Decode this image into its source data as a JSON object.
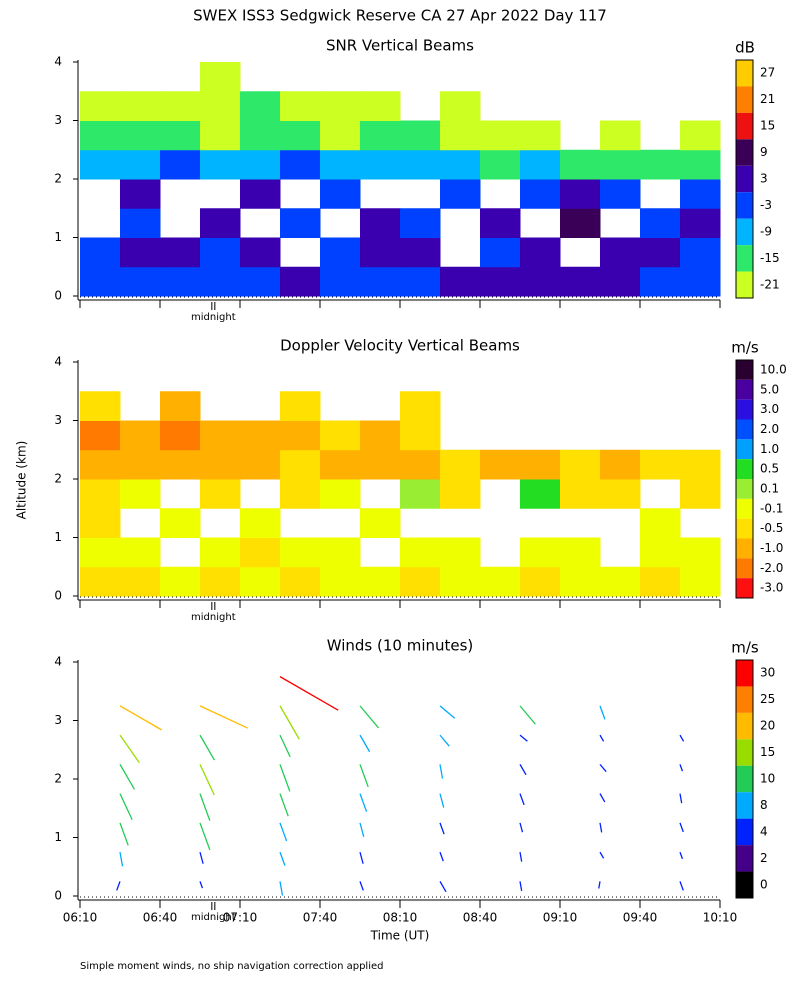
{
  "title": "SWEX ISS3 Sedgwick Reserve CA  27 Apr 2022 Day 117",
  "footnote": "Simple moment winds, no ship navigation correction applied",
  "chart_data": [
    {
      "type": "heatmap",
      "title": "SNR Vertical Beams",
      "x": [
        377.5,
        392.5,
        407.5,
        422.5,
        437.5,
        452.5,
        467.5,
        482.5,
        497.5,
        512.5,
        527.5,
        542.5,
        557.5,
        572.5,
        587.5,
        602.5
      ],
      "y": [
        0.25,
        0.75,
        1.25,
        1.75,
        2.25,
        2.75,
        3.25,
        3.75
      ],
      "values": [
        [
          -6,
          -6,
          -3,
          -3,
          -3,
          0,
          -3,
          -3,
          -3,
          3,
          3,
          3,
          3,
          3,
          -3,
          -6
        ],
        [
          -3,
          3,
          3,
          -3,
          3,
          null,
          -3,
          3,
          3,
          null,
          -3,
          3,
          null,
          3,
          3,
          -3
        ],
        [
          null,
          -3,
          null,
          3,
          null,
          -3,
          null,
          3,
          -3,
          null,
          3,
          null,
          9,
          null,
          -3,
          3
        ],
        [
          null,
          3,
          null,
          null,
          3,
          null,
          -3,
          null,
          null,
          -3,
          null,
          -3,
          3,
          -3,
          null,
          -3
        ],
        [
          -9,
          -9,
          -3,
          -9,
          -9,
          -3,
          -9,
          -9,
          -9,
          -9,
          -15,
          -9,
          -15,
          -15,
          -15,
          -15
        ],
        [
          -15,
          -15,
          -15,
          -21,
          -15,
          -15,
          -21,
          -15,
          -15,
          -21,
          -21,
          -21,
          null,
          -21,
          null,
          -21
        ],
        [
          -21,
          -21,
          -21,
          -21,
          -15,
          -21,
          -21,
          -21,
          null,
          -21,
          null,
          null,
          null,
          null,
          null,
          null
        ],
        [
          null,
          null,
          null,
          -21,
          null,
          null,
          null,
          null,
          null,
          null,
          null,
          null,
          null,
          null,
          null,
          null
        ]
      ],
      "xlim": [
        370,
        610
      ],
      "ylim": [
        0,
        4
      ],
      "yticks": [
        0,
        1,
        2,
        3,
        4
      ],
      "annotation": {
        "text": "midnight",
        "x": 420
      },
      "colorbar": {
        "label": "dB",
        "ticks": [
          27,
          21,
          15,
          9,
          3,
          -3,
          -9,
          -15,
          -21
        ],
        "colors": [
          "#ffcc00",
          "#ff7f00",
          "#ee1111",
          "#3a0058",
          "#3a00b0",
          "#0040ff",
          "#00b4ff",
          "#2ee86a",
          "#ccff22"
        ]
      }
    },
    {
      "type": "heatmap",
      "title": "Doppler Velocity Vertical Beams",
      "y_label": "Altitude (km)",
      "x": [
        377.5,
        392.5,
        407.5,
        422.5,
        437.5,
        452.5,
        467.5,
        482.5,
        497.5,
        512.5,
        527.5,
        542.5,
        557.5,
        572.5,
        587.5,
        602.5
      ],
      "y": [
        0.25,
        0.75,
        1.25,
        1.75,
        2.25,
        2.75,
        3.25,
        3.75
      ],
      "values": [
        [
          -0.5,
          -0.5,
          -0.1,
          -0.5,
          -0.1,
          -0.5,
          -0.1,
          -0.1,
          -0.5,
          -0.1,
          -0.1,
          -0.5,
          -0.1,
          -0.1,
          -0.5,
          -0.1
        ],
        [
          -0.1,
          -0.1,
          null,
          -0.1,
          -0.5,
          -0.1,
          -0.1,
          null,
          -0.1,
          -0.1,
          null,
          -0.1,
          -0.1,
          null,
          -0.1,
          -0.1
        ],
        [
          -0.5,
          null,
          -0.1,
          null,
          -0.1,
          null,
          null,
          -0.1,
          null,
          null,
          null,
          null,
          null,
          null,
          -0.1,
          null
        ],
        [
          -0.5,
          -0.1,
          null,
          -0.5,
          null,
          -0.5,
          -0.1,
          null,
          0.1,
          -0.5,
          null,
          0.5,
          -0.5,
          -0.5,
          null,
          -0.5
        ],
        [
          -1.0,
          -1.0,
          -1.0,
          -1.0,
          -1.0,
          -0.5,
          -1.0,
          -1.0,
          -1.0,
          -0.5,
          -1.0,
          -1.0,
          -0.5,
          -1.0,
          -0.5,
          -0.5
        ],
        [
          -2.0,
          -1.0,
          -2.0,
          -1.0,
          -1.0,
          -1.0,
          -0.5,
          -1.0,
          -0.5,
          null,
          null,
          null,
          null,
          null,
          null,
          null
        ],
        [
          -0.5,
          null,
          -1.0,
          null,
          null,
          -0.5,
          null,
          null,
          -0.5,
          null,
          null,
          null,
          null,
          null,
          null,
          null
        ],
        [
          null,
          null,
          null,
          null,
          null,
          null,
          null,
          null,
          null,
          null,
          null,
          null,
          null,
          null,
          null,
          null
        ]
      ],
      "xlim": [
        370,
        610
      ],
      "ylim": [
        0,
        4
      ],
      "yticks": [
        0,
        1,
        2,
        3,
        4
      ],
      "annotation": {
        "text": "midnight",
        "x": 420
      },
      "colorbar": {
        "label": "m/s",
        "ticks": [
          {
            "value": 10,
            "label": "10.0"
          },
          {
            "value": 5,
            "label": "5.0"
          },
          {
            "value": 3,
            "label": "3.0"
          },
          {
            "value": 2,
            "label": "2.0"
          },
          {
            "value": 1,
            "label": "1.0"
          },
          {
            "value": 0.5,
            "label": "0.5"
          },
          {
            "value": 0.1,
            "label": "0.1"
          },
          {
            "value": -0.1,
            "label": "-0.1"
          },
          {
            "value": -0.5,
            "label": "-0.5"
          },
          {
            "value": -1,
            "label": "-1.0"
          },
          {
            "value": -2,
            "label": "-2.0"
          },
          {
            "value": -3,
            "label": "-3.0"
          }
        ],
        "colors": [
          "#2a0030",
          "#4a00a0",
          "#2a10e0",
          "#0050ff",
          "#00a0ff",
          "#22dd22",
          "#99ee33",
          "#eeff00",
          "#ffe000",
          "#ffb000",
          "#ff7a00",
          "#ff1010"
        ]
      }
    },
    {
      "type": "barb",
      "title": "Winds (10 minutes)",
      "x_label": "Time (UT)",
      "x": [
        385,
        415,
        445,
        475,
        505,
        535,
        565,
        595
      ],
      "y": [
        0.25,
        0.75,
        1.25,
        1.75,
        2.25,
        2.75,
        3.25,
        3.75
      ],
      "speed": [
        [
          4,
          3,
          6,
          4,
          5,
          4,
          3,
          4
        ],
        [
          6,
          5,
          6,
          5,
          4,
          4,
          3,
          3
        ],
        [
          10,
          12,
          8,
          6,
          5,
          4,
          4,
          4
        ],
        [
          12,
          12,
          10,
          8,
          6,
          5,
          4,
          4
        ],
        [
          12,
          14,
          12,
          10,
          6,
          5,
          4,
          3
        ],
        [
          14,
          12,
          10,
          8,
          6,
          4,
          3,
          3
        ],
        [
          20,
          22,
          16,
          12,
          8,
          10,
          6,
          null
        ],
        [
          null,
          null,
          28,
          null,
          null,
          null,
          null,
          null
        ]
      ],
      "direction": [
        [
          200,
          160,
          170,
          160,
          150,
          170,
          190,
          160
        ],
        [
          170,
          165,
          160,
          165,
          160,
          170,
          150,
          160
        ],
        [
          160,
          160,
          160,
          165,
          160,
          165,
          170,
          160
        ],
        [
          155,
          160,
          160,
          160,
          165,
          160,
          150,
          170
        ],
        [
          150,
          155,
          160,
          160,
          170,
          150,
          140,
          160
        ],
        [
          145,
          150,
          155,
          150,
          140,
          130,
          150,
          150
        ],
        [
          120,
          115,
          150,
          140,
          130,
          140,
          160,
          null
        ],
        [
          null,
          null,
          120,
          null,
          null,
          null,
          null,
          null
        ]
      ],
      "xlim": [
        370,
        610
      ],
      "ylim": [
        0,
        4
      ],
      "yticks": [
        0,
        1,
        2,
        3,
        4
      ],
      "xticks": [
        {
          "value": 370,
          "label": "06:10"
        },
        {
          "value": 400,
          "label": "06:40"
        },
        {
          "value": 430,
          "label": "07:10"
        },
        {
          "value": 460,
          "label": "07:40"
        },
        {
          "value": 490,
          "label": "08:10"
        },
        {
          "value": 520,
          "label": "08:40"
        },
        {
          "value": 550,
          "label": "09:10"
        },
        {
          "value": 580,
          "label": "09:40"
        },
        {
          "value": 610,
          "label": "10:10"
        }
      ],
      "annotation": {
        "text": "midnight",
        "x": 420
      },
      "colorbar": {
        "label": "m/s",
        "ticks": [
          30,
          25,
          20,
          15,
          10,
          8,
          4,
          2,
          0
        ],
        "colors": [
          "#ff0000",
          "#ff8000",
          "#ffbb00",
          "#99dd00",
          "#22cc55",
          "#00aaff",
          "#0022ff",
          "#440088",
          "#000000"
        ]
      }
    }
  ]
}
